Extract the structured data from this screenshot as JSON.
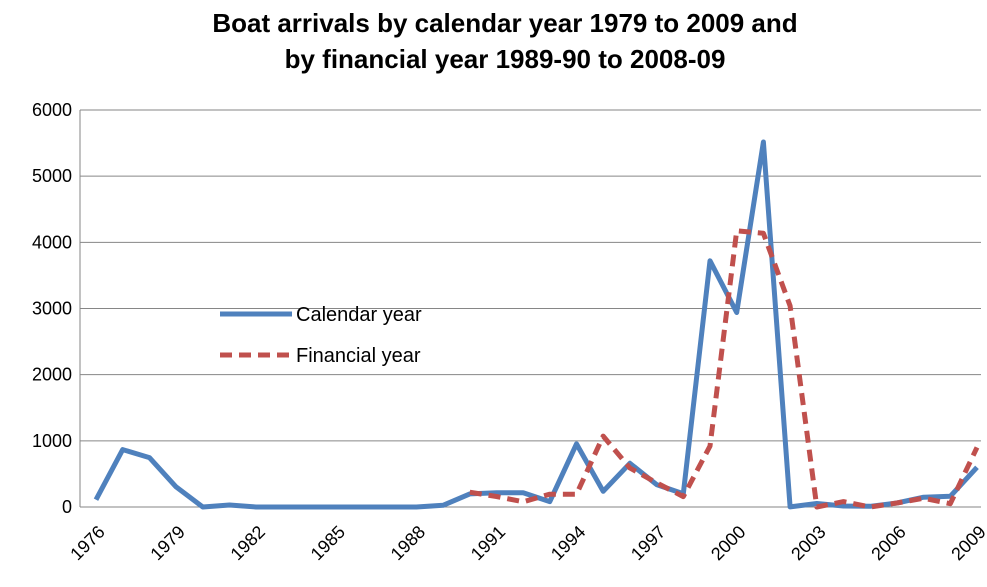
{
  "chart_data": {
    "type": "line",
    "title_lines": [
      "Boat arrivals by calendar year 1979 to 2009 and",
      "by financial year 1989-90 to 2008-09"
    ],
    "xlabel": "",
    "ylabel": "",
    "ylim": [
      0,
      6000
    ],
    "y_ticks": [
      "0",
      "1000",
      "2000",
      "3000",
      "4000",
      "5000",
      "6000"
    ],
    "x_ticks": [
      "1976",
      "1979",
      "1982",
      "1985",
      "1988",
      "1991",
      "1994",
      "1997",
      "2000",
      "2003",
      "2006",
      "2009"
    ],
    "xlim": [
      1976,
      2009
    ],
    "grid": true,
    "legend_position": "center-left",
    "series": [
      {
        "name": "Calendar year",
        "color": "#4f81bd",
        "dash": "solid",
        "points": [
          [
            1976,
            111
          ],
          [
            1977,
            868
          ],
          [
            1978,
            746
          ],
          [
            1979,
            304
          ],
          [
            1980,
            0
          ],
          [
            1981,
            30
          ],
          [
            1982,
            0
          ],
          [
            1983,
            0
          ],
          [
            1984,
            0
          ],
          [
            1985,
            0
          ],
          [
            1986,
            0
          ],
          [
            1987,
            0
          ],
          [
            1988,
            0
          ],
          [
            1989,
            26
          ],
          [
            1990,
            198
          ],
          [
            1991,
            214
          ],
          [
            1992,
            216
          ],
          [
            1993,
            81
          ],
          [
            1994,
            953
          ],
          [
            1995,
            237
          ],
          [
            1996,
            660
          ],
          [
            1997,
            339
          ],
          [
            1998,
            200
          ],
          [
            1999,
            3721
          ],
          [
            2000,
            2939
          ],
          [
            2001,
            5516
          ],
          [
            2002,
            1
          ],
          [
            2003,
            53
          ],
          [
            2004,
            15
          ],
          [
            2005,
            11
          ],
          [
            2006,
            60
          ],
          [
            2007,
            148
          ],
          [
            2008,
            161
          ],
          [
            2009,
            600
          ]
        ]
      },
      {
        "name": "Financial year",
        "color": "#c0504d",
        "dash": "dashed",
        "points": [
          [
            1990,
            224
          ],
          [
            1991,
            158
          ],
          [
            1992,
            78
          ],
          [
            1993,
            194
          ],
          [
            1994,
            194
          ],
          [
            1995,
            1071
          ],
          [
            1996,
            589
          ],
          [
            1997,
            365
          ],
          [
            1998,
            157
          ],
          [
            1999,
            921
          ],
          [
            2000,
            4175
          ],
          [
            2001,
            4137
          ],
          [
            2002,
            3039
          ],
          [
            2003,
            0
          ],
          [
            2004,
            82
          ],
          [
            2005,
            0
          ],
          [
            2006,
            60
          ],
          [
            2007,
            133
          ],
          [
            2008,
            50
          ],
          [
            2009,
            900
          ]
        ]
      }
    ]
  }
}
